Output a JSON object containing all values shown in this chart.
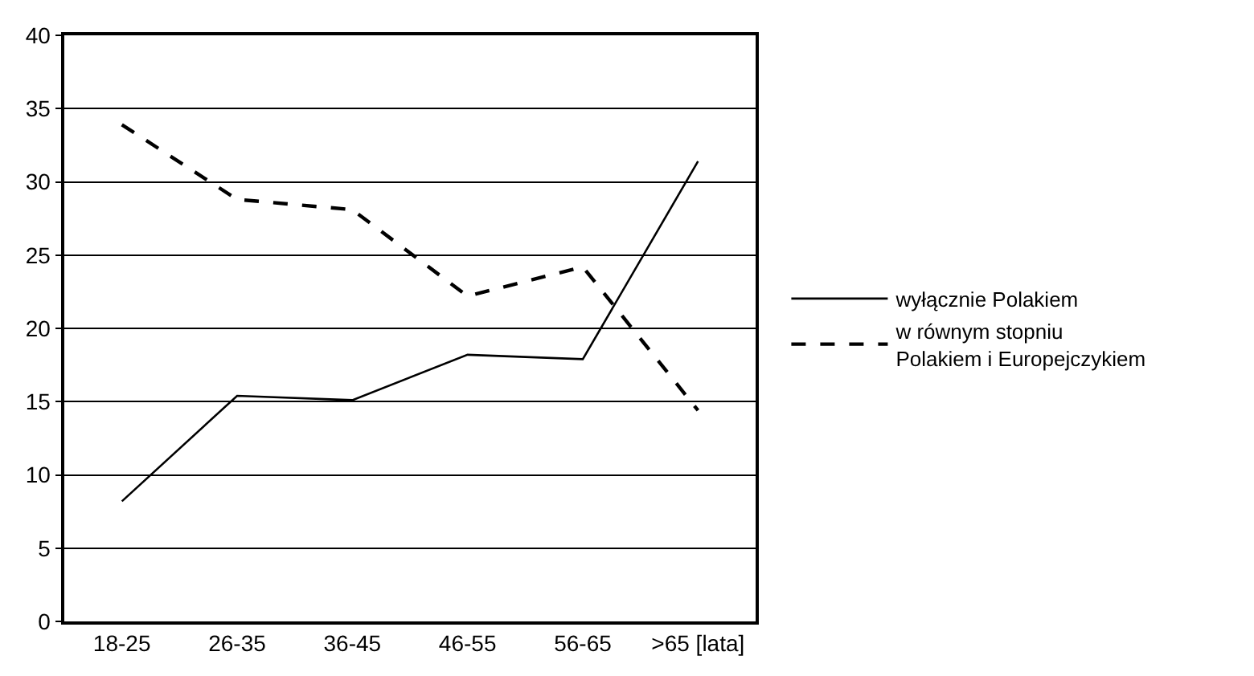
{
  "chart_data": {
    "type": "line",
    "categories": [
      "18-25",
      "26-35",
      "36-45",
      "46-55",
      "56-65",
      ">65 [lata]"
    ],
    "series": [
      {
        "name": "wyłącznie Polakiem",
        "color": "#000000",
        "line_style": "solid",
        "values": [
          8.2,
          15.4,
          15.1,
          18.2,
          17.9,
          31.4
        ]
      },
      {
        "name": "w równym stopniu\nPolakiem i Europejczykiem",
        "color": "#000000",
        "line_style": "dashed",
        "values": [
          33.9,
          28.8,
          28.1,
          22.2,
          24.2,
          14.4
        ]
      }
    ],
    "ylim": [
      0,
      40
    ],
    "yticks": [
      0,
      5,
      10,
      15,
      20,
      25,
      30,
      35,
      40
    ],
    "grid": "y",
    "legend": "right",
    "marker": "none"
  }
}
